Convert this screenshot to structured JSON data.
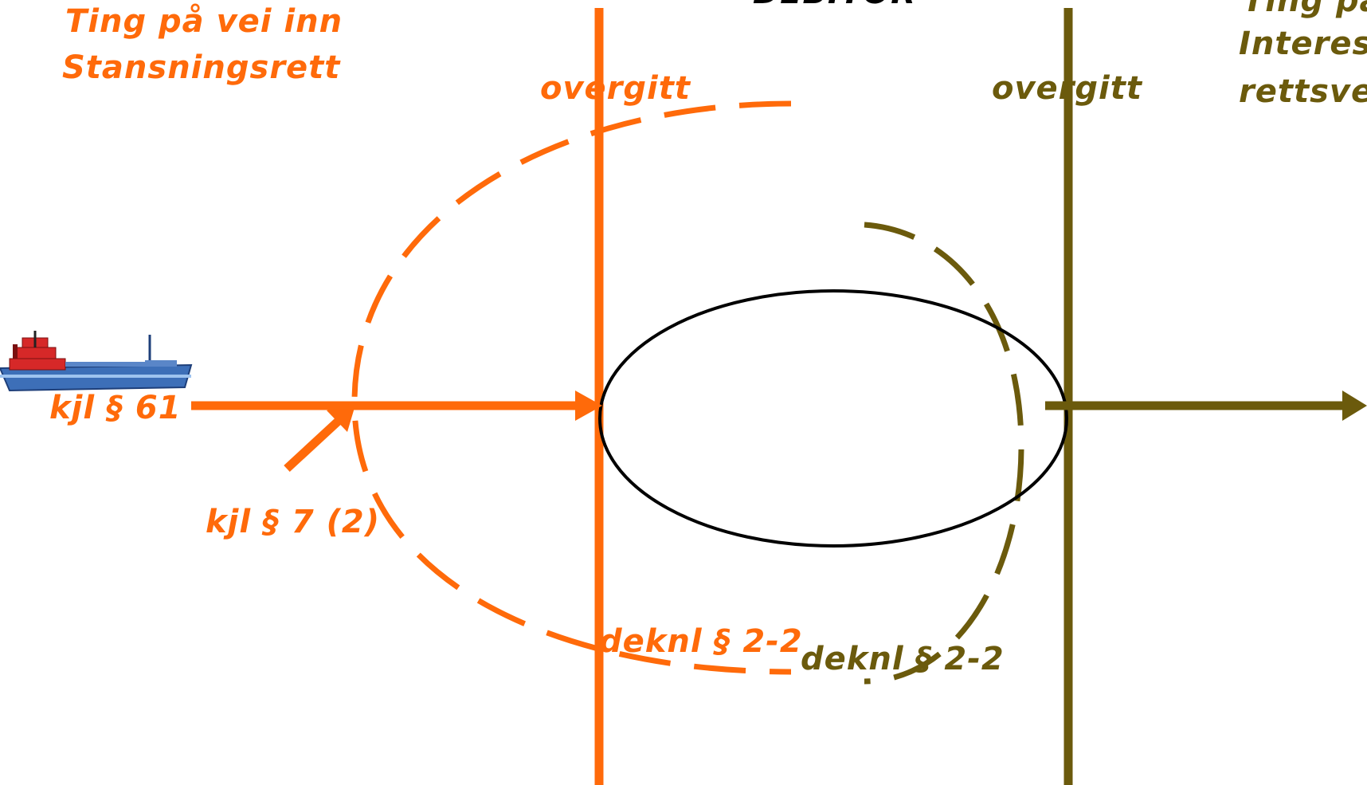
{
  "colors": {
    "orange": "#ff6a0a",
    "olive": "#6b5a0c",
    "black": "#000000",
    "ship_hull": "#3d6fb8",
    "ship_superstructure": "#d62828"
  },
  "icons": [
    "cargo-ship-icon"
  ],
  "labels": {
    "top_left_line1": "Ting på vei inn",
    "top_left_line2": "Stansningsrett",
    "top_center_partial": "DEBITOR",
    "top_right_line1": "Ting på",
    "top_right_line2": "Interes",
    "top_right_line3": "rettsve",
    "overgitt_orange": "overgitt",
    "overgitt_olive": "overgitt",
    "kjl_61": "kjl § 61",
    "kjl_7_2": "kjl § 7 (2)",
    "deknl_orange": "deknl § 2-2",
    "deknl_olive": "deknl § 2-2"
  }
}
